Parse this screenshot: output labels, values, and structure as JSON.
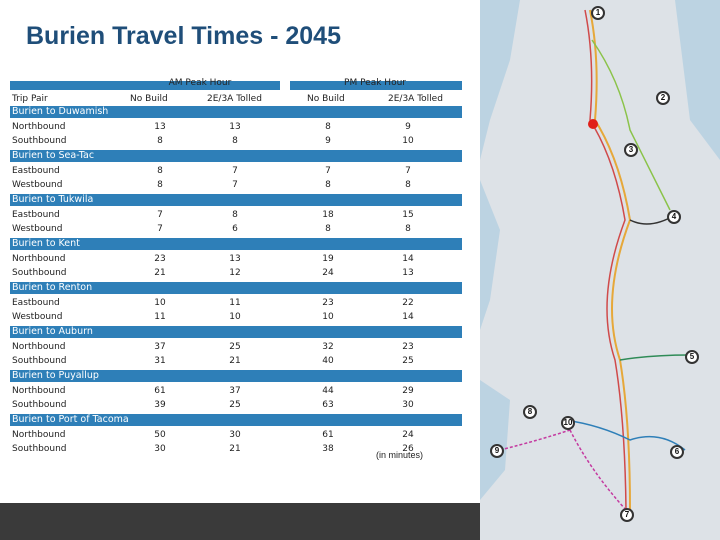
{
  "title": "Burien Travel Times - 2045",
  "header": {
    "am": "AM Peak Hour",
    "pm": "PM Peak Hour",
    "trip_pair": "Trip Pair",
    "no_build_am": "No Build",
    "tolled_am": "2E/3A Tolled",
    "no_build_pm": "No Build",
    "tolled_pm": "2E/3A Tolled"
  },
  "sections": [
    {
      "name": "Burien to Duwamish",
      "rows": [
        [
          "Northbound",
          "13",
          "13",
          "8",
          "9"
        ],
        [
          "Southbound",
          "8",
          "8",
          "9",
          "10"
        ]
      ]
    },
    {
      "name": "Burien to Sea-Tac",
      "rows": [
        [
          "Eastbound",
          "8",
          "7",
          "7",
          "7"
        ],
        [
          "Westbound",
          "8",
          "7",
          "8",
          "8"
        ]
      ]
    },
    {
      "name": "Burien to Tukwila",
      "rows": [
        [
          "Eastbound",
          "7",
          "8",
          "18",
          "15"
        ],
        [
          "Westbound",
          "7",
          "6",
          "8",
          "8"
        ]
      ]
    },
    {
      "name": "Burien to Kent",
      "rows": [
        [
          "Northbound",
          "23",
          "13",
          "19",
          "14"
        ],
        [
          "Southbound",
          "21",
          "12",
          "24",
          "13"
        ]
      ]
    },
    {
      "name": "Burien to Renton",
      "rows": [
        [
          "Eastbound",
          "10",
          "11",
          "23",
          "22"
        ],
        [
          "Westbound",
          "11",
          "10",
          "10",
          "14"
        ]
      ]
    },
    {
      "name": "Burien to Auburn",
      "rows": [
        [
          "Northbound",
          "37",
          "25",
          "32",
          "23"
        ],
        [
          "Southbound",
          "31",
          "21",
          "40",
          "25"
        ]
      ]
    },
    {
      "name": "Burien to Puyallup",
      "rows": [
        [
          "Northbound",
          "61",
          "37",
          "44",
          "29"
        ],
        [
          "Southbound",
          "39",
          "25",
          "63",
          "30"
        ]
      ]
    },
    {
      "name": "Burien to Port of Tacoma",
      "rows": [
        [
          "Northbound",
          "50",
          "30",
          "61",
          "24"
        ],
        [
          "Southbound",
          "30",
          "21",
          "38",
          "26"
        ]
      ]
    }
  ],
  "note": "(in minutes)",
  "map_markers": [
    "1",
    "2",
    "3",
    "4",
    "5",
    "6",
    "7",
    "8",
    "9",
    "10"
  ]
}
